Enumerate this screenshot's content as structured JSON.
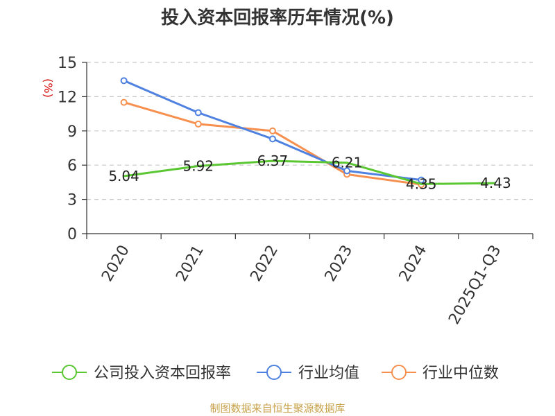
{
  "chart_data": {
    "type": "line",
    "title": "投入资本回报率历年情况(%)",
    "ylabel": "(%)",
    "xlabel": "",
    "categories": [
      "2020",
      "2021",
      "2022",
      "2023",
      "2024",
      "2025Q1-Q3"
    ],
    "ylim": [
      0,
      15
    ],
    "yticks": [
      0,
      3,
      6,
      9,
      12,
      15
    ],
    "grid": true,
    "legend_position": "bottom",
    "series": [
      {
        "name": "公司投入资本回报率",
        "color": "#5ac732",
        "values": [
          5.04,
          5.92,
          6.37,
          6.21,
          4.35,
          4.43
        ],
        "labels": [
          "5.04",
          "5.92",
          "6.37",
          "6.21",
          "4.35",
          "4.43"
        ]
      },
      {
        "name": "行业均值",
        "color": "#4f81e0",
        "values": [
          13.4,
          10.6,
          8.3,
          5.5,
          4.7,
          null
        ]
      },
      {
        "name": "行业中位数",
        "color": "#f7904f",
        "values": [
          11.5,
          9.6,
          9.0,
          5.2,
          4.3,
          null
        ]
      }
    ],
    "source": "制图数据来自恒生聚源数据库"
  }
}
